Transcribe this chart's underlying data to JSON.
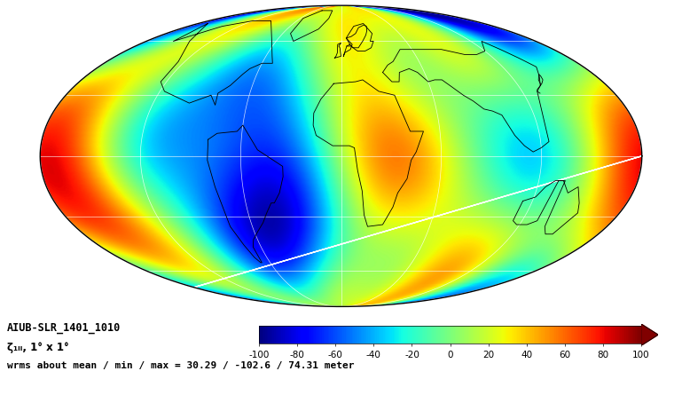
{
  "title_line1": "AIUB-SLR_1401_1010",
  "title_line2": "ζ₁ₗₗ, 1° x 1°",
  "title_line3": "wrms about mean / min / max = 30.29 / -102.6 / 74.31 meter",
  "colorbar_min": -100,
  "colorbar_max": 100,
  "colorbar_ticks": [
    -100,
    -80,
    -60,
    -40,
    -20,
    0,
    20,
    40,
    60,
    80,
    100
  ],
  "colormap": "jet",
  "background_color": "#ffffff",
  "fig_width": 7.69,
  "fig_height": 4.45,
  "dpi": 100,
  "grid_lons": [
    -180,
    -120,
    -60,
    0,
    60,
    120,
    180
  ],
  "grid_lats": [
    -60,
    -30,
    0,
    30,
    60
  ]
}
